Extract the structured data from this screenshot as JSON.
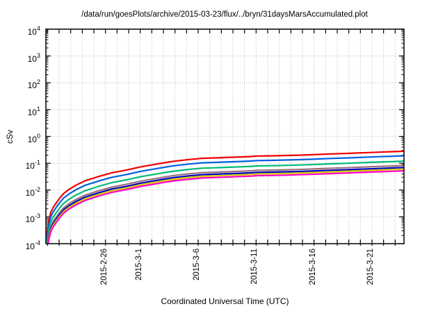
{
  "title": "/data/run/goesPlots/archive/2015-03-23/flux/../bryn/31daysMarsAccumulated.plot",
  "chart_data": {
    "type": "line",
    "title": "/data/run/goesPlots/archive/2015-03-23/flux/../bryn/31daysMarsAccumulated.plot",
    "xlabel": "Coordinated Universal Time (UTC)",
    "ylabel": "cSv",
    "y_scale": "log10",
    "ylim": [
      0.0001,
      10000.0
    ],
    "y_tick_exponents": [
      4,
      3,
      2,
      1,
      0,
      -1,
      -2,
      -3,
      -4
    ],
    "grid": "dotted gray; vertical line at every daily x tick, horizontal line at every decade",
    "legend": "none",
    "x_ticks": {
      "minor_interval": "1 day",
      "count": 31,
      "first_fraction": 0.00455,
      "step_fraction": 0.03236,
      "labels": [
        {
          "day_index": 5,
          "text": "2015-2-26"
        },
        {
          "day_index": 8,
          "text": "2015-3-1"
        },
        {
          "day_index": 13,
          "text": "2015-3-6"
        },
        {
          "day_index": 18,
          "text": "2015-3-11"
        },
        {
          "day_index": 23,
          "text": "2015-3-16"
        },
        {
          "day_index": 28,
          "text": "2015-3-21"
        }
      ]
    },
    "series_note": "Seven accumulated-dose curves, parallel on log scale; value(u) = end_value_cSv * 10^shape_offset(u), u = fraction across x-axis",
    "series": [
      {
        "name": "red-curve",
        "color": "#f00000",
        "end_value_cSv": 0.28
      },
      {
        "name": "blue-curve",
        "color": "#0060e0",
        "end_value_cSv": 0.19
      },
      {
        "name": "green-curve",
        "color": "#00b878",
        "end_value_cSv": 0.12
      },
      {
        "name": "brown-curve",
        "color": "#9a6f78",
        "end_value_cSv": 0.082
      },
      {
        "name": "navy-curve",
        "color": "#0000c0",
        "end_value_cSv": 0.069
      },
      {
        "name": "yellow-curve",
        "color": "#d4cc00",
        "end_value_cSv": 0.06
      },
      {
        "name": "magenta-curve",
        "color": "#ff00cc",
        "end_value_cSv": 0.052
      }
    ],
    "shape_log10_offsets": [
      [
        0.0,
        -3.44
      ],
      [
        0.004,
        -2.95
      ],
      [
        0.008,
        -2.58
      ],
      [
        0.013,
        -2.3
      ],
      [
        0.02,
        -2.1
      ],
      [
        0.027,
        -1.96
      ],
      [
        0.038,
        -1.76
      ],
      [
        0.05,
        -1.57
      ],
      [
        0.065,
        -1.42
      ],
      [
        0.085,
        -1.26
      ],
      [
        0.11,
        -1.1
      ],
      [
        0.15,
        -0.93
      ],
      [
        0.185,
        -0.8
      ],
      [
        0.225,
        -0.7
      ],
      [
        0.265,
        -0.58
      ],
      [
        0.3,
        -0.5
      ],
      [
        0.33,
        -0.43
      ],
      [
        0.36,
        -0.37
      ],
      [
        0.4,
        -0.31
      ],
      [
        0.435,
        -0.266
      ],
      [
        0.47,
        -0.25
      ],
      [
        0.5,
        -0.235
      ],
      [
        0.55,
        -0.21
      ],
      [
        0.575,
        -0.195
      ],
      [
        0.59,
        -0.18
      ],
      [
        0.64,
        -0.17
      ],
      [
        0.67,
        -0.16
      ],
      [
        0.7,
        -0.148
      ],
      [
        0.73,
        -0.135
      ],
      [
        0.765,
        -0.118
      ],
      [
        0.8,
        -0.1
      ],
      [
        0.835,
        -0.083
      ],
      [
        0.87,
        -0.065
      ],
      [
        0.9,
        -0.05
      ],
      [
        0.93,
        -0.035
      ],
      [
        0.965,
        -0.018
      ],
      [
        1.0,
        0.0
      ]
    ]
  }
}
